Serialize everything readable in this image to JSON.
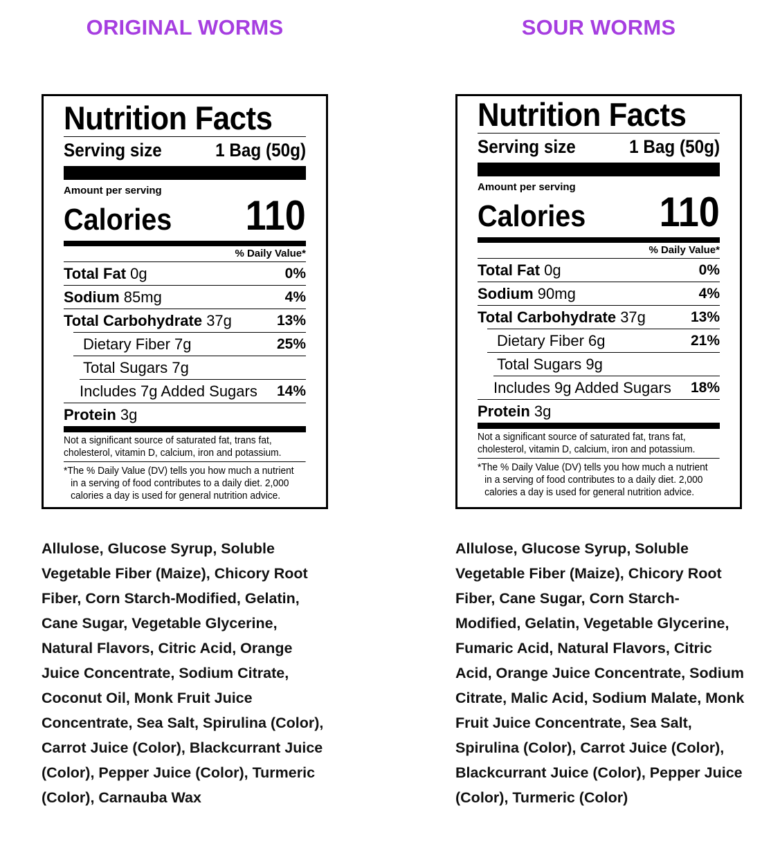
{
  "products": [
    {
      "title": "ORIGINAL WORMS",
      "title_color": "#a63ee0",
      "label": {
        "heading": "Nutrition Facts",
        "serving_size_label": "Serving size",
        "serving_size_value": "1 Bag (50g)",
        "amount_per_serving": "Amount per serving",
        "calories_label": "Calories",
        "calories_value": "110",
        "daily_value_header": "% Daily Value*",
        "total_fat_label": "Total Fat",
        "total_fat_amount": "0g",
        "total_fat_dv": "0%",
        "sodium_label": "Sodium",
        "sodium_amount": "85mg",
        "sodium_dv": "4%",
        "carb_label": "Total Carbohydrate",
        "carb_amount": "37g",
        "carb_dv": "13%",
        "fiber": "Dietary Fiber 7g",
        "fiber_dv": "25%",
        "sugars": "Total Sugars 7g",
        "added_sugars": "Includes 7g Added Sugars",
        "added_sugars_dv": "14%",
        "protein_label": "Protein",
        "protein_amount": "3g",
        "footnote_1": "Not a significant source of saturated fat, trans fat, cholesterol, vitamin D, calcium, iron and potassium.",
        "footnote_2a": "*The % Daily Value (DV) tells you how much a nutrient",
        "footnote_2b": "in a serving of food contributes to a daily diet. 2,000",
        "footnote_2c": "calories a day is used for general nutrition advice."
      },
      "ingredients": "Allulose, Glucose Syrup, Soluble Vegetable Fiber (Maize), Chicory Root Fiber, Corn Starch-Modified, Gelatin, Cane Sugar, Vegetable Glycerine, Natural Flavors, Citric Acid, Orange Juice Concentrate, Sodium Citrate, Coconut Oil, Monk Fruit Juice Concentrate, Sea Salt, Spirulina (Color), Carrot Juice (Color), Blackcurrant Juice (Color), Pepper Juice (Color), Turmeric (Color), Carnauba Wax"
    },
    {
      "title": "SOUR WORMS",
      "title_color": "#a63ee0",
      "label": {
        "heading": "Nutrition Facts",
        "serving_size_label": "Serving size",
        "serving_size_value": "1 Bag (50g)",
        "amount_per_serving": "Amount per serving",
        "calories_label": "Calories",
        "calories_value": "110",
        "daily_value_header": "% Daily Value*",
        "total_fat_label": "Total Fat",
        "total_fat_amount": "0g",
        "total_fat_dv": "0%",
        "sodium_label": "Sodium",
        "sodium_amount": "90mg",
        "sodium_dv": "4%",
        "carb_label": "Total Carbohydrate",
        "carb_amount": "37g",
        "carb_dv": "13%",
        "fiber": "Dietary Fiber 6g",
        "fiber_dv": "21%",
        "sugars": "Total Sugars 9g",
        "added_sugars": "Includes 9g Added Sugars",
        "added_sugars_dv": "18%",
        "protein_label": "Protein",
        "protein_amount": "3g",
        "footnote_1": "Not a significant source of saturated fat, trans fat, cholesterol, vitamin D, calcium, iron and potassium.",
        "footnote_2a": "*The % Daily Value (DV) tells you how much a nutrient",
        "footnote_2b": "in a serving of food contributes to a daily diet. 2,000",
        "footnote_2c": "calories a day is used for general nutrition advice."
      },
      "ingredients": "Allulose, Glucose Syrup, Soluble Vegetable Fiber (Maize), Chicory Root Fiber, Cane Sugar, Corn Starch-Modified, Gelatin, Vegetable Glycerine, Fumaric Acid, Natural Flavors, Citric Acid, Orange Juice Concentrate, Sodium Citrate, Malic Acid, Sodium Malate, Monk Fruit Juice Concentrate, Sea Salt, Spirulina (Color), Carrot Juice (Color), Blackcurrant Juice (Color), Pepper Juice (Color), Turmeric (Color)"
    }
  ]
}
